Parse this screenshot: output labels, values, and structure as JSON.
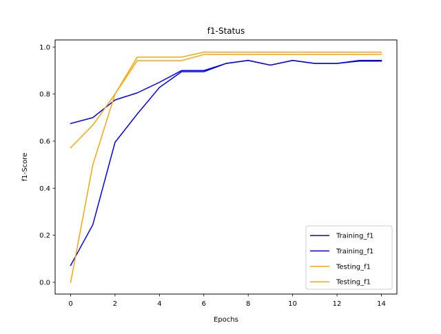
{
  "chart_data": {
    "type": "line",
    "title": "f1-Status",
    "xlabel": "Epochs",
    "ylabel": "f1-Score",
    "xlim": [
      -0.7,
      14.7
    ],
    "ylim": [
      -0.05,
      1.03
    ],
    "xticks": [
      0,
      2,
      4,
      6,
      8,
      10,
      12,
      14
    ],
    "yticks": [
      0.0,
      0.2,
      0.4,
      0.6,
      0.8,
      1.0
    ],
    "xtick_labels": [
      "0",
      "2",
      "4",
      "6",
      "8",
      "10",
      "12",
      "14"
    ],
    "ytick_labels": [
      "0.0",
      "0.2",
      "0.4",
      "0.6",
      "0.8",
      "1.0"
    ],
    "grid": false,
    "legend_position": "bottom-right",
    "x": [
      0,
      1,
      2,
      3,
      4,
      5,
      6,
      7,
      8,
      9,
      10,
      11,
      12,
      13,
      14
    ],
    "series": [
      {
        "name": "Training_f1",
        "color": "#0000ff",
        "values": [
          0.675,
          0.7,
          0.775,
          0.805,
          0.85,
          0.9,
          0.9,
          0.93,
          0.943,
          0.923,
          0.943,
          0.93,
          0.93,
          0.943,
          0.943
        ]
      },
      {
        "name": "Training_f1",
        "color": "#0000ff",
        "values": [
          0.072,
          0.245,
          0.595,
          0.715,
          0.828,
          0.895,
          0.895,
          0.93,
          0.943,
          0.923,
          0.943,
          0.93,
          0.93,
          0.94,
          0.94
        ]
      },
      {
        "name": "Testing_f1",
        "color": "#ffa500",
        "values": [
          0.572,
          0.668,
          0.8,
          0.957,
          0.957,
          0.957,
          0.978,
          0.978,
          0.978,
          0.978,
          0.978,
          0.978,
          0.978,
          0.978,
          0.978
        ]
      },
      {
        "name": "Testing_f1",
        "color": "#ffa500",
        "values": [
          0.0,
          0.5,
          0.8,
          0.942,
          0.942,
          0.942,
          0.968,
          0.968,
          0.968,
          0.968,
          0.968,
          0.968,
          0.968,
          0.968,
          0.968
        ]
      }
    ]
  }
}
